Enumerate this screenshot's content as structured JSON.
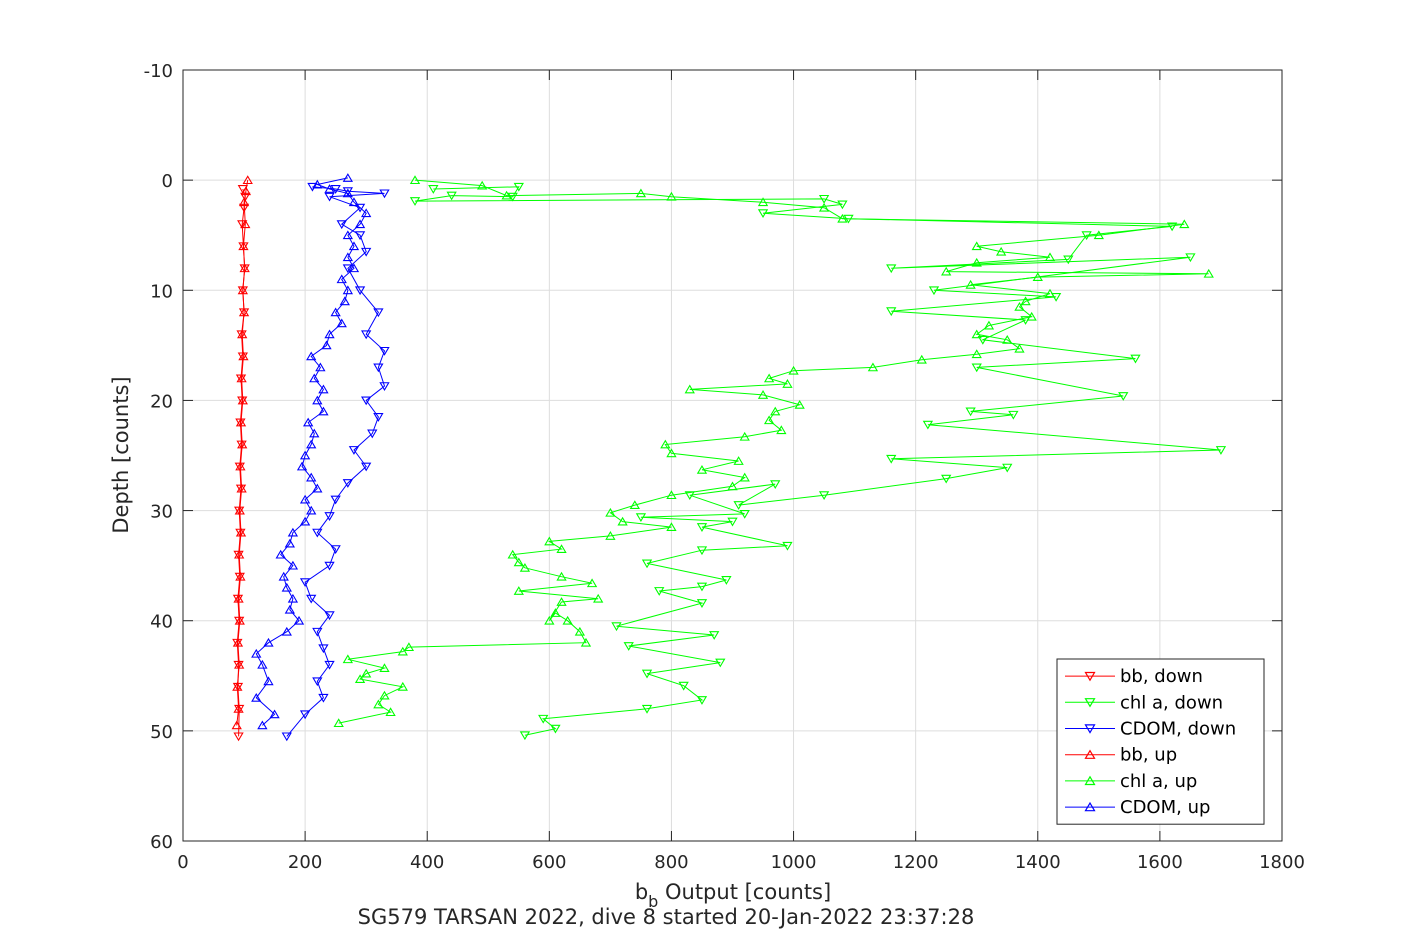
{
  "chart_data": {
    "type": "line",
    "title": "",
    "xlabel_main": "b",
    "xlabel_sub": "b",
    "xlabel_rest": " Output [counts]",
    "ylabel": "Depth [counts]",
    "caption": "SG579 TARSAN 2022, dive 8 started 20-Jan-2022 23:37:28",
    "xlim": [
      0,
      1800
    ],
    "ylim": [
      -10,
      60
    ],
    "y_reversed": true,
    "xticks": [
      0,
      200,
      400,
      600,
      800,
      1000,
      1200,
      1400,
      1600,
      1800
    ],
    "yticks": [
      -10,
      0,
      10,
      20,
      30,
      40,
      50,
      60
    ],
    "grid": true,
    "legend_position": "bottom-right",
    "series": [
      {
        "name": "bb, down",
        "color": "#ff0000",
        "marker": "triangle-down",
        "points": [
          [
            98,
            0.8
          ],
          [
            102,
            1.5
          ],
          [
            100,
            2.5
          ],
          [
            97,
            4
          ],
          [
            99,
            6
          ],
          [
            101,
            8
          ],
          [
            98,
            10
          ],
          [
            100,
            12
          ],
          [
            96,
            14
          ],
          [
            98,
            16
          ],
          [
            95,
            18
          ],
          [
            97,
            20
          ],
          [
            94,
            22
          ],
          [
            96,
            24
          ],
          [
            93,
            26
          ],
          [
            95,
            28
          ],
          [
            92,
            30
          ],
          [
            94,
            32
          ],
          [
            91,
            34
          ],
          [
            93,
            36
          ],
          [
            90,
            38
          ],
          [
            92,
            40
          ],
          [
            89,
            42
          ],
          [
            91,
            44
          ],
          [
            90,
            46
          ],
          [
            92,
            48
          ],
          [
            91,
            50.5
          ]
        ]
      },
      {
        "name": "chl a, down",
        "color": "#00ff00",
        "marker": "triangle-down",
        "points": [
          [
            410,
            0.8
          ],
          [
            550,
            0.6
          ],
          [
            540,
            1.5
          ],
          [
            440,
            1.4
          ],
          [
            380,
            1.9
          ],
          [
            1050,
            1.7
          ],
          [
            1080,
            2.2
          ],
          [
            950,
            3
          ],
          [
            1090,
            3.5
          ],
          [
            1620,
            4.2
          ],
          [
            1480,
            5
          ],
          [
            1450,
            7.2
          ],
          [
            1160,
            8
          ],
          [
            1650,
            7
          ],
          [
            1230,
            10
          ],
          [
            1430,
            10.6
          ],
          [
            1160,
            11.9
          ],
          [
            1380,
            12.7
          ],
          [
            1310,
            14.5
          ],
          [
            1560,
            16.2
          ],
          [
            1300,
            17
          ],
          [
            1540,
            19.6
          ],
          [
            1290,
            21
          ],
          [
            1360,
            21.3
          ],
          [
            1220,
            22.2
          ],
          [
            1700,
            24.5
          ],
          [
            1160,
            25.3
          ],
          [
            1350,
            26.1
          ],
          [
            1250,
            27.1
          ],
          [
            1050,
            28.6
          ],
          [
            910,
            29.5
          ],
          [
            970,
            27.6
          ],
          [
            830,
            28.6
          ],
          [
            920,
            30.3
          ],
          [
            750,
            30.6
          ],
          [
            900,
            31
          ],
          [
            850,
            31.5
          ],
          [
            990,
            33.2
          ],
          [
            850,
            33.6
          ],
          [
            760,
            34.8
          ],
          [
            890,
            36.3
          ],
          [
            850,
            36.9
          ],
          [
            780,
            37.3
          ],
          [
            850,
            38.4
          ],
          [
            710,
            40.5
          ],
          [
            870,
            41.3
          ],
          [
            730,
            42.3
          ],
          [
            880,
            43.8
          ],
          [
            760,
            44.8
          ],
          [
            820,
            45.9
          ],
          [
            850,
            47.2
          ],
          [
            760,
            48
          ],
          [
            590,
            48.9
          ],
          [
            610,
            49.8
          ],
          [
            560,
            50.4
          ]
        ]
      },
      {
        "name": "CDOM, down",
        "color": "#0000ff",
        "marker": "triangle-down",
        "points": [
          [
            212,
            0.6
          ],
          [
            250,
            0.8
          ],
          [
            270,
            1
          ],
          [
            330,
            1.2
          ],
          [
            240,
            1.5
          ],
          [
            290,
            2.5
          ],
          [
            260,
            4
          ],
          [
            290,
            5
          ],
          [
            300,
            6.5
          ],
          [
            270,
            8
          ],
          [
            290,
            10
          ],
          [
            320,
            12
          ],
          [
            300,
            14
          ],
          [
            330,
            15.5
          ],
          [
            320,
            17
          ],
          [
            330,
            18.7
          ],
          [
            300,
            20
          ],
          [
            320,
            21.5
          ],
          [
            310,
            23
          ],
          [
            280,
            24.5
          ],
          [
            300,
            26
          ],
          [
            270,
            27.5
          ],
          [
            250,
            29
          ],
          [
            240,
            30.5
          ],
          [
            220,
            32
          ],
          [
            250,
            33.5
          ],
          [
            240,
            35
          ],
          [
            200,
            36.5
          ],
          [
            210,
            38
          ],
          [
            240,
            39.5
          ],
          [
            220,
            41
          ],
          [
            230,
            42.5
          ],
          [
            240,
            44
          ],
          [
            220,
            45.5
          ],
          [
            230,
            47
          ],
          [
            200,
            48.5
          ],
          [
            170,
            50.5
          ]
        ]
      },
      {
        "name": "bb, up",
        "color": "#ff0000",
        "marker": "triangle-up",
        "points": [
          [
            88,
            49.5
          ],
          [
            91,
            48
          ],
          [
            89,
            46
          ],
          [
            92,
            44
          ],
          [
            90,
            42
          ],
          [
            93,
            40
          ],
          [
            91,
            38
          ],
          [
            94,
            36
          ],
          [
            92,
            34
          ],
          [
            95,
            32
          ],
          [
            93,
            30
          ],
          [
            96,
            28
          ],
          [
            94,
            26
          ],
          [
            97,
            24
          ],
          [
            95,
            22
          ],
          [
            98,
            20
          ],
          [
            96,
            18
          ],
          [
            99,
            16
          ],
          [
            97,
            14
          ],
          [
            100,
            12
          ],
          [
            98,
            10
          ],
          [
            101,
            8
          ],
          [
            99,
            6
          ],
          [
            102,
            4
          ],
          [
            100,
            2
          ],
          [
            103,
            1
          ],
          [
            106,
            0
          ]
        ]
      },
      {
        "name": "chl a, up",
        "color": "#00ff00",
        "marker": "triangle-up",
        "points": [
          [
            255,
            49.3
          ],
          [
            340,
            48.3
          ],
          [
            320,
            47.6
          ],
          [
            330,
            46.8
          ],
          [
            360,
            46
          ],
          [
            290,
            45.3
          ],
          [
            300,
            44.8
          ],
          [
            330,
            44.3
          ],
          [
            270,
            43.5
          ],
          [
            360,
            42.8
          ],
          [
            370,
            42.4
          ],
          [
            660,
            42
          ],
          [
            650,
            41
          ],
          [
            630,
            40
          ],
          [
            610,
            39.3
          ],
          [
            600,
            40
          ],
          [
            620,
            38.3
          ],
          [
            680,
            38
          ],
          [
            550,
            37.3
          ],
          [
            670,
            36.6
          ],
          [
            620,
            36
          ],
          [
            560,
            35.2
          ],
          [
            550,
            34.7
          ],
          [
            540,
            34
          ],
          [
            620,
            33.5
          ],
          [
            600,
            32.8
          ],
          [
            700,
            32.3
          ],
          [
            800,
            31.5
          ],
          [
            720,
            31
          ],
          [
            700,
            30.2
          ],
          [
            740,
            29.5
          ],
          [
            800,
            28.6
          ],
          [
            900,
            27.8
          ],
          [
            920,
            27
          ],
          [
            850,
            26.3
          ],
          [
            910,
            25.5
          ],
          [
            800,
            24.8
          ],
          [
            790,
            24
          ],
          [
            920,
            23.3
          ],
          [
            980,
            22.7
          ],
          [
            960,
            21.8
          ],
          [
            970,
            21
          ],
          [
            1010,
            20.4
          ],
          [
            950,
            19.5
          ],
          [
            830,
            19
          ],
          [
            990,
            18.5
          ],
          [
            960,
            18
          ],
          [
            1000,
            17.3
          ],
          [
            1130,
            17
          ],
          [
            1210,
            16.3
          ],
          [
            1300,
            15.8
          ],
          [
            1370,
            15.3
          ],
          [
            1350,
            14.5
          ],
          [
            1300,
            14
          ],
          [
            1320,
            13.2
          ],
          [
            1390,
            12.4
          ],
          [
            1370,
            11.5
          ],
          [
            1380,
            11
          ],
          [
            1420,
            10.3
          ],
          [
            1290,
            9.5
          ],
          [
            1400,
            8.8
          ],
          [
            1680,
            8.5
          ],
          [
            1250,
            8.3
          ],
          [
            1300,
            7.5
          ],
          [
            1420,
            7
          ],
          [
            1340,
            6.5
          ],
          [
            1300,
            6
          ],
          [
            1500,
            5
          ],
          [
            1640,
            4
          ],
          [
            1080,
            3.5
          ],
          [
            1050,
            2.5
          ],
          [
            950,
            2
          ],
          [
            800,
            1.5
          ],
          [
            750,
            1.2
          ],
          [
            530,
            1.4
          ],
          [
            490,
            0.5
          ],
          [
            380,
            0
          ]
        ]
      },
      {
        "name": "CDOM, up",
        "color": "#0000ff",
        "marker": "triangle-up",
        "points": [
          [
            130,
            49.5
          ],
          [
            150,
            48.5
          ],
          [
            120,
            47
          ],
          [
            140,
            45.5
          ],
          [
            130,
            44
          ],
          [
            120,
            43
          ],
          [
            140,
            42
          ],
          [
            170,
            41
          ],
          [
            190,
            40
          ],
          [
            175,
            39
          ],
          [
            180,
            38
          ],
          [
            170,
            37
          ],
          [
            165,
            36
          ],
          [
            180,
            35
          ],
          [
            160,
            34
          ],
          [
            175,
            33
          ],
          [
            180,
            32
          ],
          [
            200,
            31
          ],
          [
            210,
            30
          ],
          [
            200,
            29
          ],
          [
            220,
            28
          ],
          [
            210,
            27
          ],
          [
            195,
            26
          ],
          [
            200,
            25
          ],
          [
            210,
            24
          ],
          [
            215,
            23
          ],
          [
            205,
            22
          ],
          [
            230,
            21
          ],
          [
            220,
            20
          ],
          [
            230,
            19
          ],
          [
            215,
            18
          ],
          [
            225,
            17
          ],
          [
            210,
            16
          ],
          [
            235,
            15
          ],
          [
            240,
            14
          ],
          [
            260,
            13
          ],
          [
            250,
            12
          ],
          [
            265,
            11
          ],
          [
            270,
            10
          ],
          [
            260,
            9
          ],
          [
            280,
            8
          ],
          [
            270,
            7
          ],
          [
            280,
            6
          ],
          [
            270,
            5
          ],
          [
            290,
            4
          ],
          [
            300,
            3
          ],
          [
            280,
            2
          ],
          [
            270,
            1.2
          ],
          [
            240,
            0.8
          ],
          [
            220,
            0.4
          ],
          [
            270,
            -0.2
          ]
        ]
      }
    ]
  }
}
